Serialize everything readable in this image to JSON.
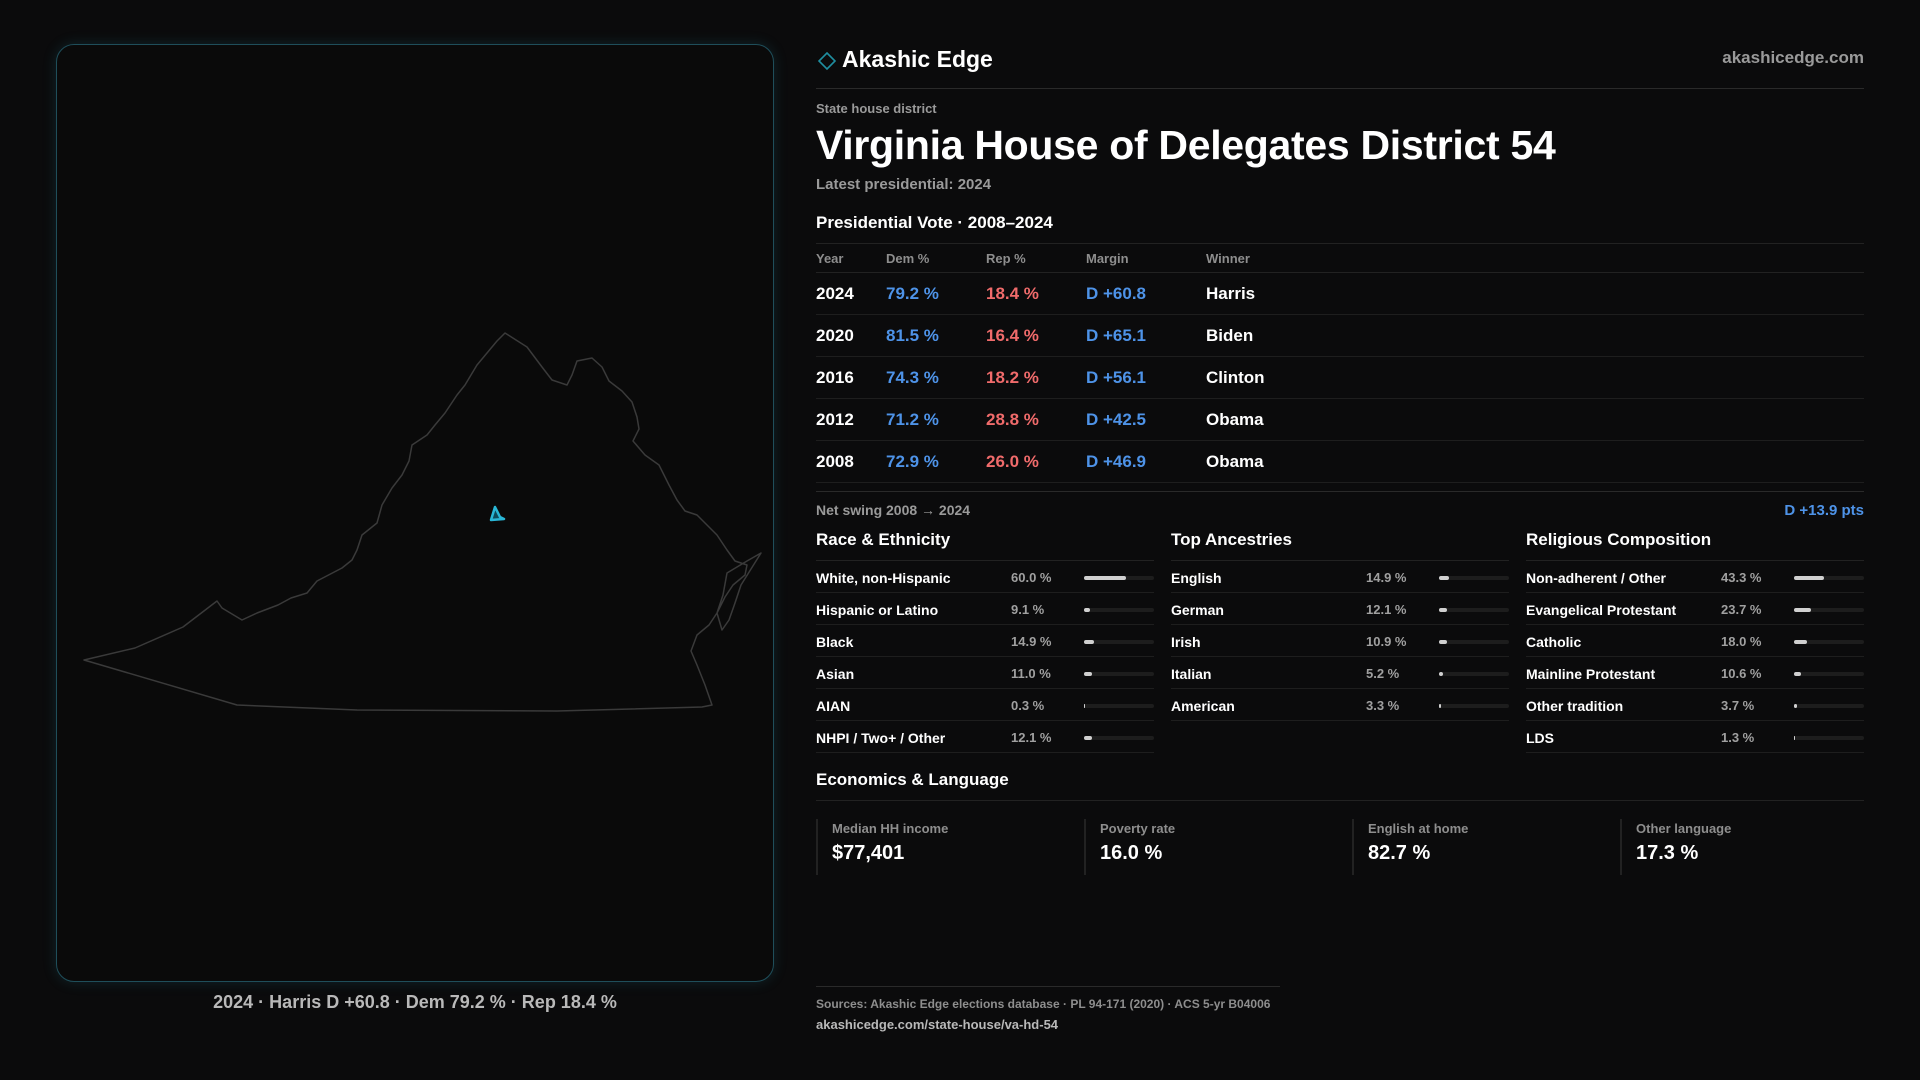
{
  "brand": {
    "name": "Akashic Edge",
    "url": "akashicedge.com",
    "logo": "diamond-logo-icon",
    "accent": "#1f8ea0"
  },
  "header": {
    "kicker": "State house district",
    "title": "Virginia House of Delegates District 54",
    "subtitle": "Latest presidential: 2024"
  },
  "map": {
    "caption": "2024 · Harris D +60.8 · Dem 79.2 % · Rep 18.4 %",
    "state_outline_color": "#3a3a3a",
    "district_color": "#29b6d6"
  },
  "presidential": {
    "title": "Presidential Vote · 2008–2024",
    "columns": [
      "Year",
      "Dem %",
      "Rep %",
      "Margin",
      "Winner"
    ],
    "rows": [
      {
        "year": "2024",
        "dem": "79.2 %",
        "rep": "18.4 %",
        "margin": "D +60.8",
        "winner": "Harris"
      },
      {
        "year": "2020",
        "dem": "81.5 %",
        "rep": "16.4 %",
        "margin": "D +65.1",
        "winner": "Biden"
      },
      {
        "year": "2016",
        "dem": "74.3 %",
        "rep": "18.2 %",
        "margin": "D +56.1",
        "winner": "Clinton"
      },
      {
        "year": "2012",
        "dem": "71.2 %",
        "rep": "28.8 %",
        "margin": "D +42.5",
        "winner": "Obama"
      },
      {
        "year": "2008",
        "dem": "72.9 %",
        "rep": "26.0 %",
        "margin": "D +46.9",
        "winner": "Obama"
      }
    ],
    "colors": {
      "dem": "#4e93e8",
      "rep": "#f06b6b"
    }
  },
  "swing": {
    "label": "Net swing 2008 → 2024",
    "value": "D +13.9 pts"
  },
  "demographics": {
    "race": {
      "title": "Race & Ethnicity",
      "items": [
        {
          "label": "White, non-Hispanic",
          "pct": "60.0 %",
          "value": 60.0
        },
        {
          "label": "Hispanic or Latino",
          "pct": "9.1 %",
          "value": 9.1
        },
        {
          "label": "Black",
          "pct": "14.9 %",
          "value": 14.9
        },
        {
          "label": "Asian",
          "pct": "11.0 %",
          "value": 11.0
        },
        {
          "label": "AIAN",
          "pct": "0.3 %",
          "value": 0.3
        },
        {
          "label": "NHPI / Two+ / Other",
          "pct": "12.1 %",
          "value": 12.1
        }
      ]
    },
    "ancestry": {
      "title": "Top Ancestries",
      "items": [
        {
          "label": "English",
          "pct": "14.9 %",
          "value": 14.9
        },
        {
          "label": "German",
          "pct": "12.1 %",
          "value": 12.1
        },
        {
          "label": "Irish",
          "pct": "10.9 %",
          "value": 10.9
        },
        {
          "label": "Italian",
          "pct": "5.2 %",
          "value": 5.2
        },
        {
          "label": "American",
          "pct": "3.3 %",
          "value": 3.3
        }
      ]
    },
    "religion": {
      "title": "Religious Composition",
      "items": [
        {
          "label": "Non-adherent / Other",
          "pct": "43.3 %",
          "value": 43.3
        },
        {
          "label": "Evangelical Protestant",
          "pct": "23.7 %",
          "value": 23.7
        },
        {
          "label": "Catholic",
          "pct": "18.0 %",
          "value": 18.0
        },
        {
          "label": "Mainline Protestant",
          "pct": "10.6 %",
          "value": 10.6
        },
        {
          "label": "Other tradition",
          "pct": "3.7 %",
          "value": 3.7
        },
        {
          "label": "LDS",
          "pct": "1.3 %",
          "value": 1.3
        }
      ]
    }
  },
  "economics": {
    "title": "Economics & Language",
    "cards": [
      {
        "label": "Median HH income",
        "value": "$77,401"
      },
      {
        "label": "Poverty rate",
        "value": "16.0 %"
      },
      {
        "label": "English at home",
        "value": "82.7 %"
      },
      {
        "label": "Other language",
        "value": "17.3 %"
      }
    ]
  },
  "footer": {
    "sources": "Sources: Akashic Edge elections database · PL 94-171 (2020) · ACS 5-yr B04006",
    "url": "akashicedge.com/state-house/va-hd-54"
  }
}
